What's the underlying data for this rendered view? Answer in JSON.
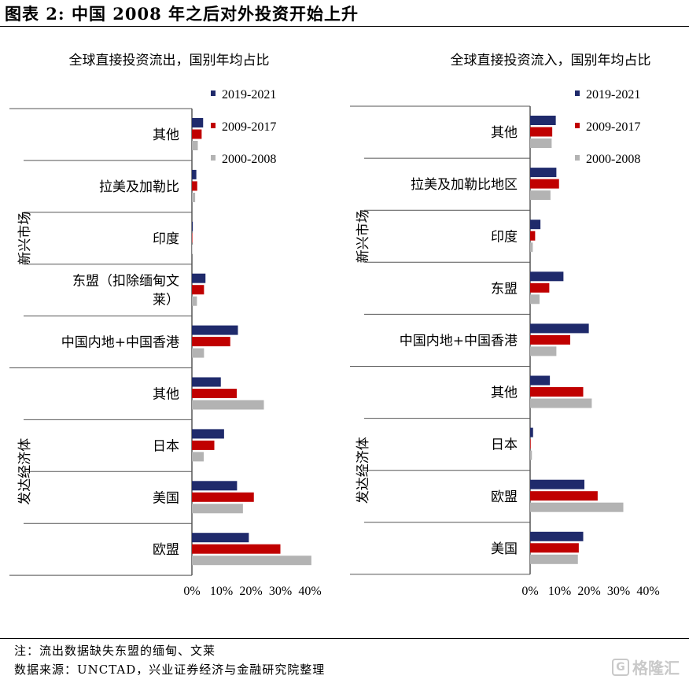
{
  "figure_title": "图表 2: 中国 2008 年之后对外投资开始上升",
  "notes": {
    "note": "注：流出数据缺失东盟的缅甸、文莱",
    "source": "数据来源：UNCTAD，兴业证券经济与金融研究院整理"
  },
  "watermark": "格隆汇",
  "colors": {
    "2019-2021": "#1f2a6b",
    "2009-2017": "#c00000",
    "2000-2008": "#b3b3b3"
  },
  "chart_data": [
    {
      "type": "bar",
      "orientation": "horizontal",
      "title": "全球直接投资流出，国别年均占比",
      "legend": [
        "2019-2021",
        "2009-2017",
        "2000-2008"
      ],
      "legend_position": "top-right",
      "groups": [
        "新兴市场",
        "发达经济体"
      ],
      "categories": [
        "其他",
        "拉美及加勒比",
        "印度",
        "东盟（扣除缅甸文莱）",
        "中国内地+中国香港",
        "其他",
        "日本",
        "美国",
        "欧盟"
      ],
      "category_labels": [
        [
          "其他"
        ],
        [
          "拉美及加勒比"
        ],
        [
          "印度"
        ],
        [
          "东盟（扣除缅甸文",
          "莱）"
        ],
        [
          "中国内地+中国香港"
        ],
        [
          "其他"
        ],
        [
          "日本"
        ],
        [
          "美国"
        ],
        [
          "欧盟"
        ]
      ],
      "category_groups": [
        "新兴市场",
        "新兴市场",
        "新兴市场",
        "新兴市场",
        "新兴市场",
        "发达经济体",
        "发达经济体",
        "发达经济体",
        "发达经济体"
      ],
      "series": [
        {
          "name": "2019-2021",
          "values": [
            3.8,
            1.5,
            0.3,
            4.6,
            15.6,
            9.8,
            10.9,
            15.3,
            19.3
          ]
        },
        {
          "name": "2009-2017",
          "values": [
            3.3,
            1.8,
            0.1,
            4.1,
            13.0,
            15.2,
            7.6,
            21.0,
            30.0
          ]
        },
        {
          "name": "2000-2008",
          "values": [
            2.0,
            1.1,
            0.0,
            1.7,
            4.1,
            24.4,
            4.0,
            17.3,
            40.5
          ]
        }
      ],
      "xlim": [
        0,
        40
      ],
      "xticks": [
        "0%",
        "10%",
        "20%",
        "30%",
        "40%"
      ]
    },
    {
      "type": "bar",
      "orientation": "horizontal",
      "title": "全球直接投资流入，国别年均占比",
      "legend": [
        "2019-2021",
        "2009-2017",
        "2000-2008"
      ],
      "legend_position": "top-right",
      "groups": [
        "新兴市场",
        "发达经济体"
      ],
      "categories": [
        "其他",
        "拉美及加勒比地区",
        "印度",
        "东盟",
        "中国内地+中国香港",
        "其他",
        "日本",
        "欧盟",
        "美国"
      ],
      "category_labels": [
        [
          "其他"
        ],
        [
          "拉美及加勒比地区"
        ],
        [
          "印度"
        ],
        [
          "东盟"
        ],
        [
          "中国内地+中国香港"
        ],
        [
          "其他"
        ],
        [
          "日本"
        ],
        [
          "欧盟"
        ],
        [
          "美国"
        ]
      ],
      "category_groups": [
        "新兴市场",
        "新兴市场",
        "新兴市场",
        "新兴市场",
        "新兴市场",
        "发达经济体",
        "发达经济体",
        "发达经济体",
        "发达经济体"
      ],
      "series": [
        {
          "name": "2019-2021",
          "values": [
            8.7,
            8.9,
            3.5,
            11.3,
            19.9,
            6.7,
            1.0,
            18.4,
            18.0
          ]
        },
        {
          "name": "2009-2017",
          "values": [
            7.5,
            9.8,
            1.7,
            6.5,
            13.6,
            18.0,
            0.2,
            22.9,
            16.5
          ]
        },
        {
          "name": "2000-2008",
          "values": [
            7.3,
            6.9,
            0.9,
            3.2,
            8.9,
            20.9,
            0.6,
            31.6,
            16.2
          ]
        }
      ],
      "xlim": [
        0,
        40
      ],
      "xticks": [
        "0%",
        "10%",
        "20%",
        "30%",
        "40%"
      ]
    }
  ]
}
